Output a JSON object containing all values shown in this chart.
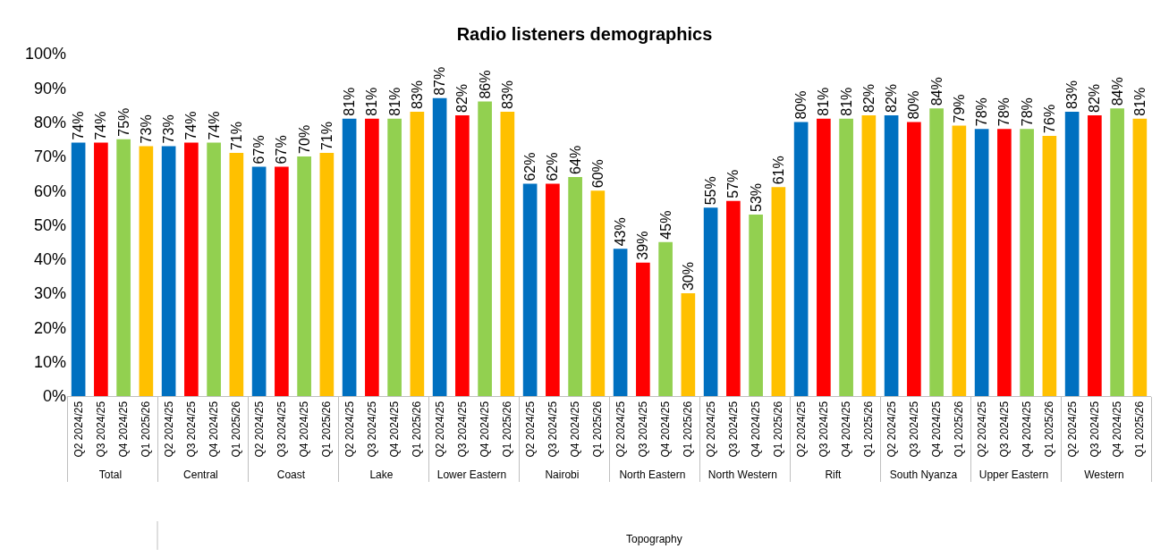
{
  "chart_data": {
    "type": "bar",
    "title": "Radio listeners demographics",
    "annotations": [
      "Topography"
    ],
    "categories": [
      "Total",
      "Central",
      "Coast",
      "Lake",
      "Lower Eastern",
      "Nairobi",
      "North Eastern",
      "North Western",
      "Rift",
      "South Nyanza",
      "Upper Eastern",
      "Western"
    ],
    "series": [
      {
        "name": "Q2 2024/25",
        "color": "#0070c0",
        "values": [
          74,
          73,
          67,
          81,
          87,
          62,
          43,
          55,
          80,
          82,
          78,
          83
        ],
        "value_labels": [
          "74%",
          "73%",
          "67%",
          "81%",
          "87%",
          "62%",
          "43%",
          "55%",
          "80%",
          "82%",
          "78%",
          "83%"
        ]
      },
      {
        "name": "Q3 2024/25",
        "color": "#ff0000",
        "values": [
          74,
          74,
          67,
          81,
          82,
          62,
          39,
          57,
          81,
          80,
          78,
          82
        ],
        "value_labels": [
          "74%",
          "74%",
          "67%",
          "81%",
          "82%",
          "62%",
          "39%",
          "57%",
          "81%",
          "80%",
          "78%",
          "82%"
        ]
      },
      {
        "name": "Q4 2024/25",
        "color": "#92d050",
        "values": [
          75,
          74,
          70,
          81,
          86,
          64,
          45,
          53,
          81,
          84,
          78,
          84
        ],
        "value_labels": [
          "75%",
          "74%",
          "70%",
          "81%",
          "86%",
          "64%",
          "45%",
          "53%",
          "81%",
          "84%",
          "78%",
          "84%"
        ]
      },
      {
        "name": "Q1 2025/26",
        "color": "#ffc000",
        "values": [
          73,
          71,
          71,
          83,
          83,
          60,
          30,
          61,
          82,
          79,
          76,
          81
        ],
        "value_labels": [
          "73%",
          "71%",
          "71%",
          "83%",
          "83%",
          "60%",
          "30%",
          "61%",
          "82%",
          "79%",
          "76%",
          "81%"
        ]
      }
    ],
    "ylim": [
      0,
      100
    ],
    "yticks": [
      {
        "value": 0,
        "label": "0%"
      },
      {
        "value": 10,
        "label": "10%"
      },
      {
        "value": 20,
        "label": "20%"
      },
      {
        "value": 30,
        "label": "30%"
      },
      {
        "value": 40,
        "label": "40%"
      },
      {
        "value": 50,
        "label": "50%"
      },
      {
        "value": 60,
        "label": "60%"
      },
      {
        "value": 70,
        "label": "70%"
      },
      {
        "value": 80,
        "label": "80%"
      },
      {
        "value": 90,
        "label": "90%"
      },
      {
        "value": 100,
        "label": "100%"
      }
    ],
    "legend": false
  }
}
